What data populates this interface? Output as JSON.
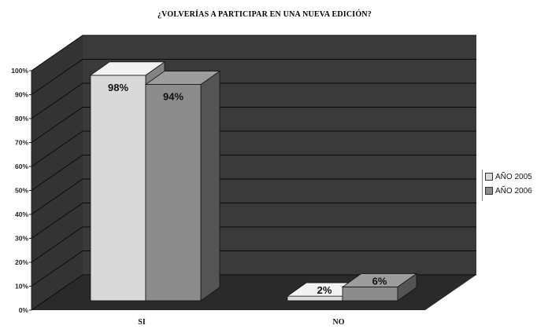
{
  "chart_data": {
    "type": "bar",
    "title": "¿VOLVERÍAS A PARTICIPAR EN UNA NUEVA EDICIÓN?",
    "categories": [
      "SI",
      "NO"
    ],
    "series": [
      {
        "name": "AÑO 2005",
        "values": [
          98,
          2
        ],
        "labels": [
          "98%",
          "2%"
        ],
        "color": "#d9d9d9"
      },
      {
        "name": "AÑO 2006",
        "values": [
          94,
          6
        ],
        "labels": [
          "94%",
          "6%"
        ],
        "color": "#8c8c8c"
      }
    ],
    "yticks": [
      "0%",
      "10%",
      "20%",
      "30%",
      "40%",
      "50%",
      "60%",
      "70%",
      "80%",
      "90%",
      "100%"
    ],
    "ylim": [
      0,
      100
    ],
    "legend_position": "right",
    "grid": true,
    "style": "3d",
    "wall_color": "#3a3a3a",
    "floor_color": "#2a2a2a"
  }
}
